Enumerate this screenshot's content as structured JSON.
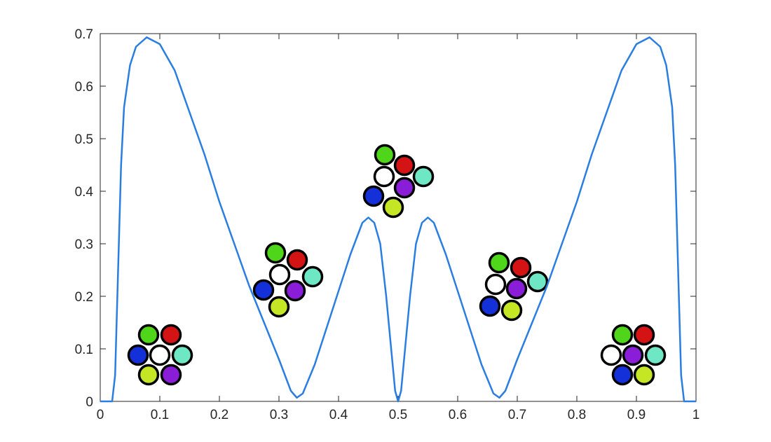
{
  "chart_data": {
    "type": "line",
    "x": [
      0,
      0.02,
      0.025,
      0.03,
      0.035,
      0.04,
      0.05,
      0.06,
      0.078,
      0.1,
      0.125,
      0.15,
      0.175,
      0.2,
      0.225,
      0.25,
      0.275,
      0.3,
      0.32,
      0.33,
      0.34,
      0.36,
      0.38,
      0.4,
      0.42,
      0.44,
      0.45,
      0.46,
      0.47,
      0.48,
      0.49,
      0.495,
      0.5,
      0.505,
      0.51,
      0.52,
      0.53,
      0.54,
      0.55,
      0.56,
      0.58,
      0.6,
      0.62,
      0.64,
      0.66,
      0.67,
      0.68,
      0.7,
      0.725,
      0.75,
      0.775,
      0.8,
      0.825,
      0.85,
      0.875,
      0.9,
      0.922,
      0.94,
      0.95,
      0.96,
      0.965,
      0.97,
      0.975,
      0.98,
      1
    ],
    "series": [
      {
        "color": "#2a7de1",
        "values": [
          0,
          0,
          0.05,
          0.25,
          0.45,
          0.56,
          0.64,
          0.675,
          0.693,
          0.68,
          0.63,
          0.55,
          0.47,
          0.38,
          0.3,
          0.22,
          0.15,
          0.08,
          0.02,
          0.007,
          0.015,
          0.07,
          0.14,
          0.21,
          0.28,
          0.34,
          0.35,
          0.34,
          0.3,
          0.2,
          0.08,
          0.02,
          0,
          0.02,
          0.08,
          0.2,
          0.3,
          0.34,
          0.35,
          0.34,
          0.28,
          0.21,
          0.14,
          0.07,
          0.015,
          0.007,
          0.02,
          0.08,
          0.15,
          0.22,
          0.3,
          0.38,
          0.47,
          0.55,
          0.63,
          0.68,
          0.693,
          0.675,
          0.64,
          0.56,
          0.45,
          0.25,
          0.05,
          0,
          0
        ]
      }
    ],
    "xlim": [
      0,
      1
    ],
    "xticks": [
      0,
      0.1,
      0.2,
      0.3,
      0.4,
      0.5,
      0.6,
      0.7,
      0.8,
      0.9,
      1
    ],
    "ylim": [
      0,
      0.7
    ],
    "yticks": [
      0,
      0.1,
      0.2,
      0.3,
      0.4,
      0.5,
      0.6,
      0.7
    ]
  }
}
